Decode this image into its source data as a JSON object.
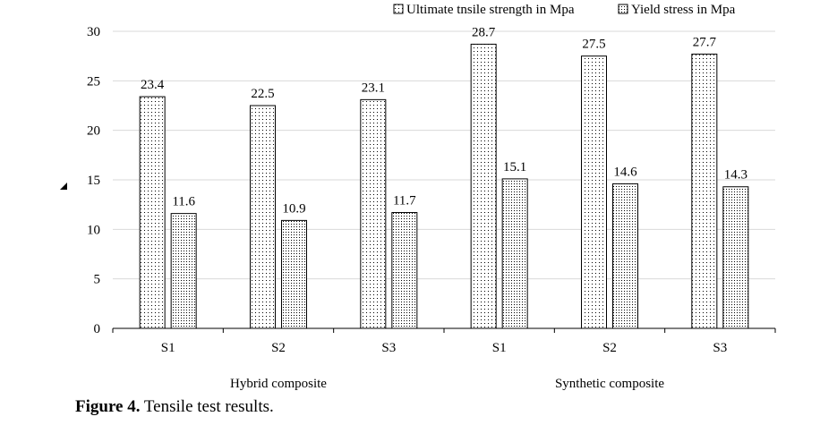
{
  "chart_data": {
    "type": "bar",
    "categories": [
      "S1",
      "S2",
      "S3",
      "S1",
      "S2",
      "S3"
    ],
    "groups": [
      {
        "label": "Hybrid composite",
        "categories": [
          "S1",
          "S2",
          "S3"
        ]
      },
      {
        "label": "Synthetic composite",
        "categories": [
          "S1",
          "S2",
          "S3"
        ]
      }
    ],
    "series": [
      {
        "name": "Ultimate tnsile strength in Mpa",
        "values": [
          23.4,
          22.5,
          23.1,
          28.7,
          27.5,
          27.7
        ],
        "pattern": "sparse-dots"
      },
      {
        "name": "Yield stress in Mpa",
        "values": [
          11.6,
          10.9,
          11.7,
          15.1,
          14.6,
          14.3
        ],
        "pattern": "dense-dots"
      }
    ],
    "ylim": [
      0,
      30
    ],
    "yticks": [
      0,
      5,
      10,
      15,
      20,
      25,
      30
    ],
    "grid": true,
    "legend_position": "top-right",
    "data_labels": true,
    "colors": {
      "stroke": "#000000",
      "grid": "#d9d9d9",
      "fill": "#ffffff"
    }
  },
  "caption": {
    "label": "Figure 4.",
    "text": "Tensile test results."
  }
}
